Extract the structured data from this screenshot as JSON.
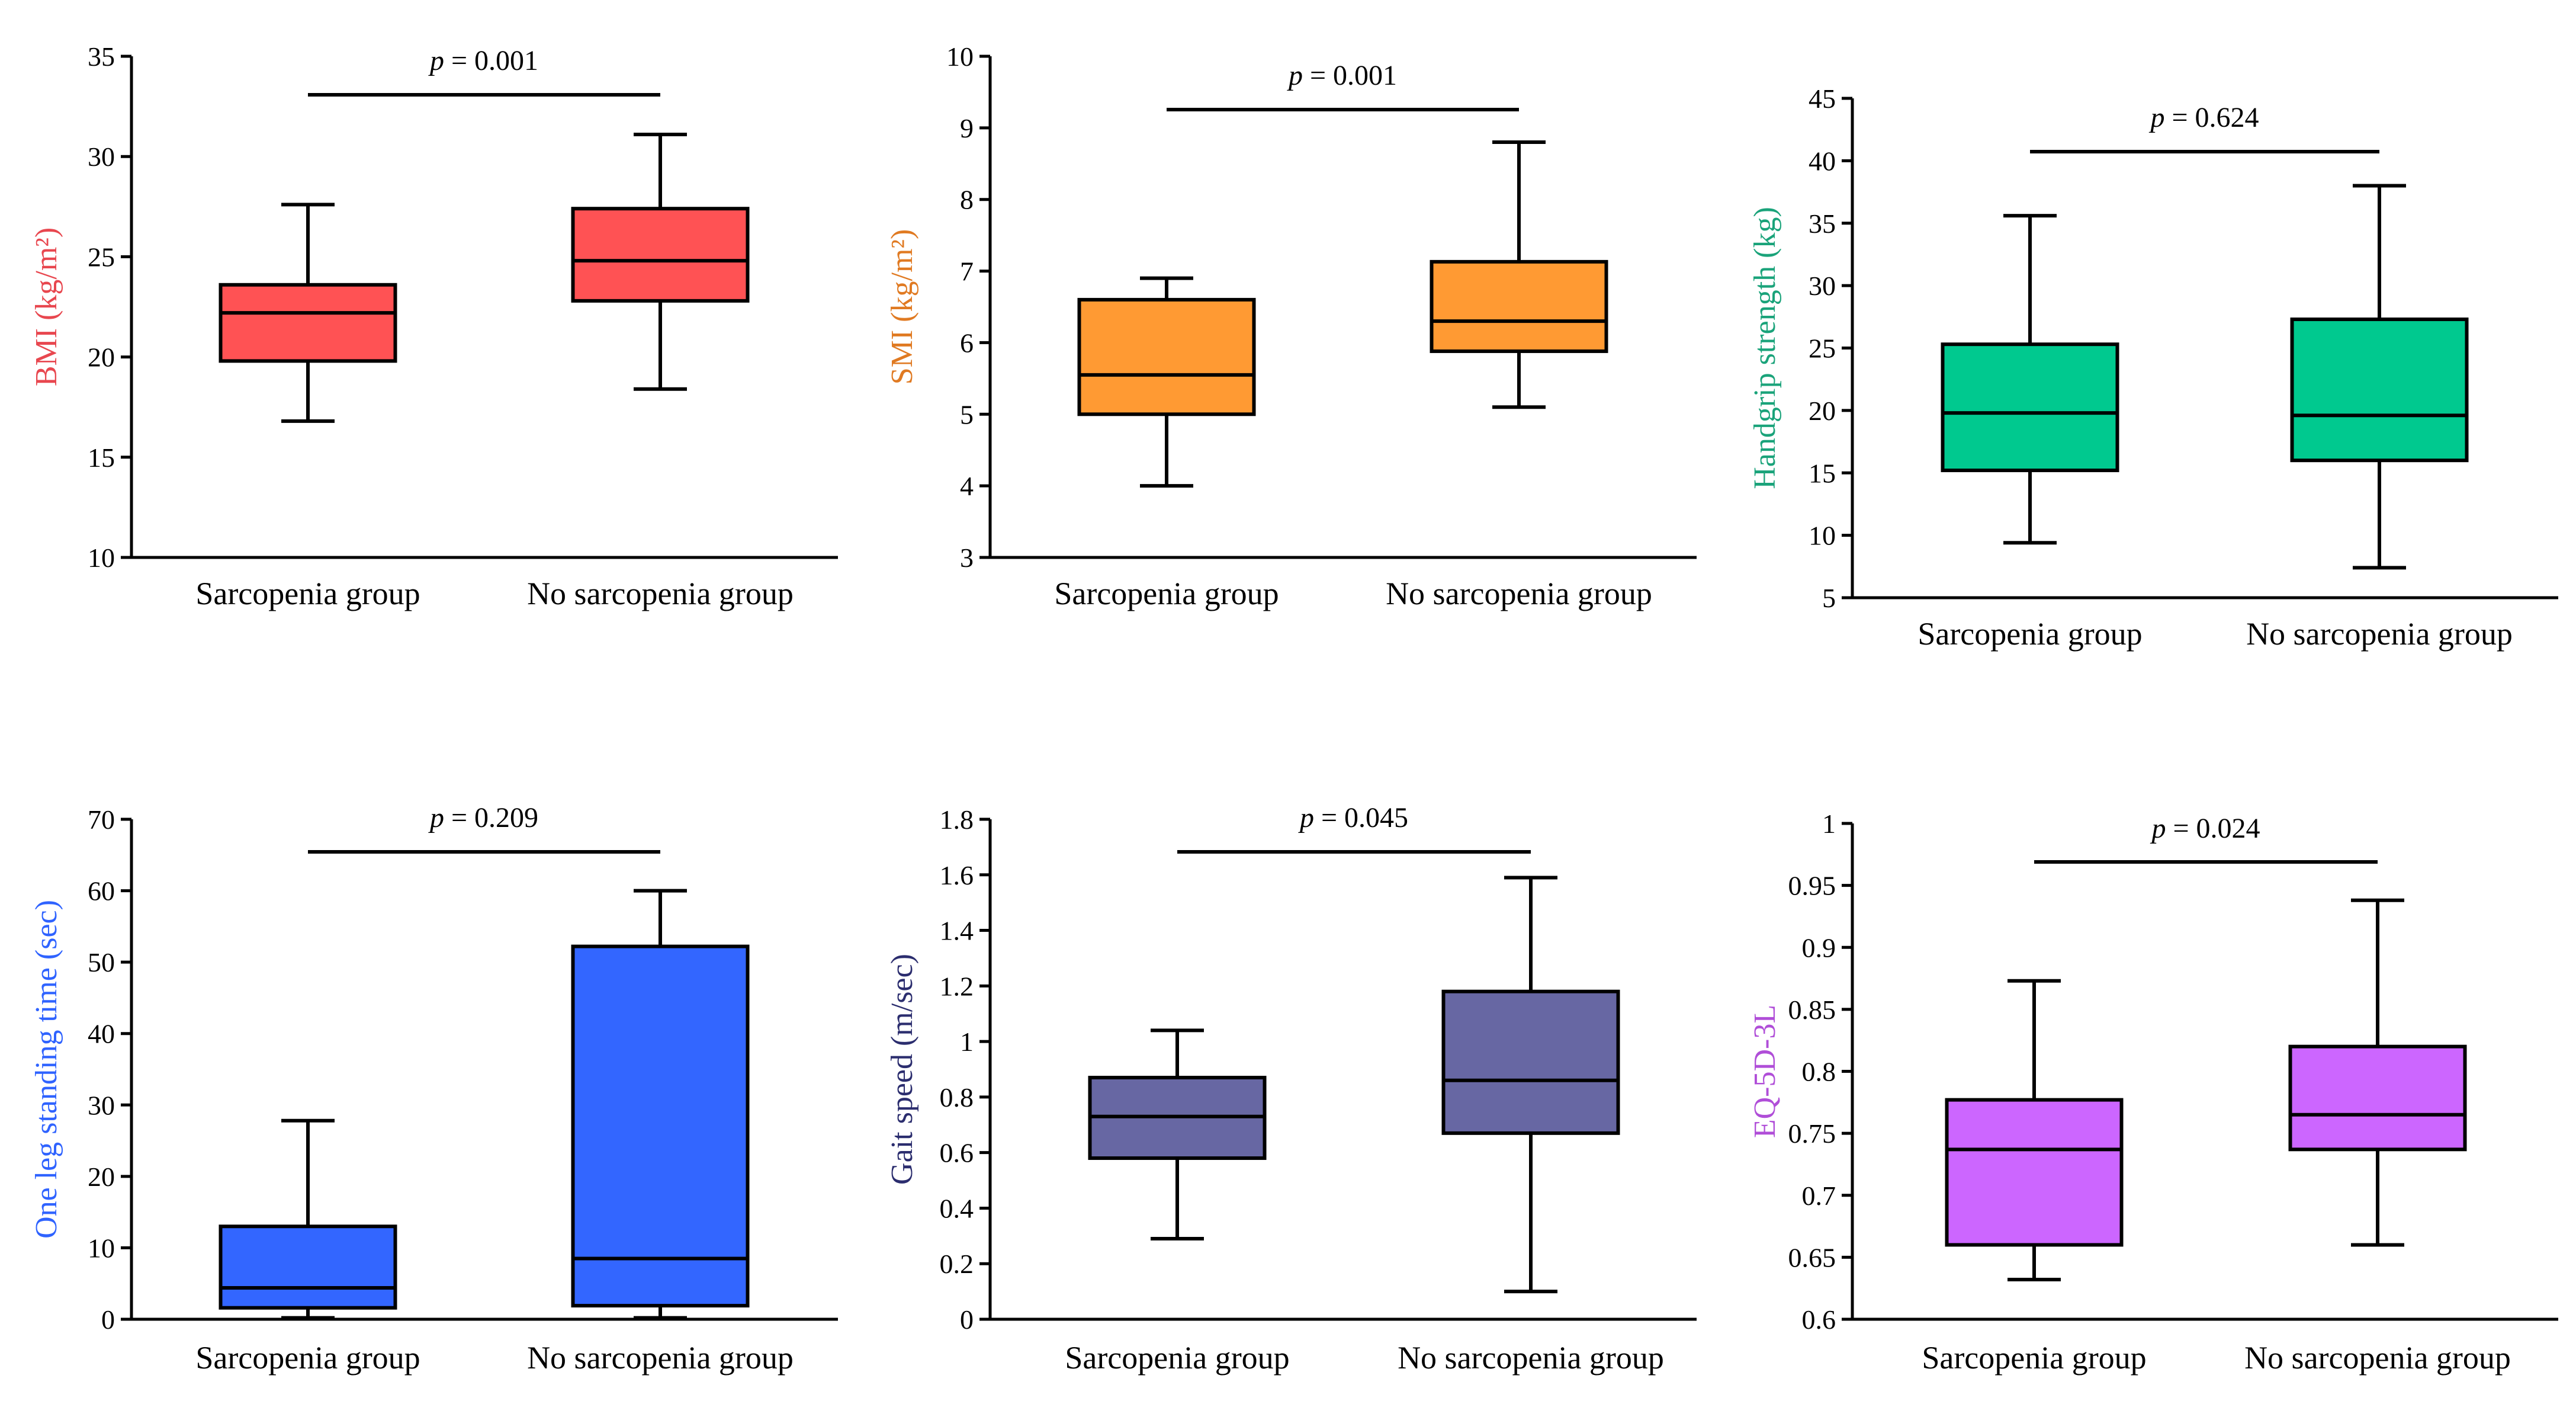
{
  "chart_data": [
    {
      "type": "box",
      "ylabel": "BMI (kg/m²)",
      "ylabel_color": "#e8474f",
      "box_color": "#ff5254",
      "ylim": [
        10,
        35
      ],
      "yticks": [
        "10",
        "15",
        "20",
        "25",
        "30",
        "35"
      ],
      "categories": [
        "Sarcopenia group",
        "No sarcopenia group"
      ],
      "boxes": [
        {
          "min": 16.8,
          "q1": 19.8,
          "median": 22.2,
          "q3": 23.6,
          "max": 27.6
        },
        {
          "min": 18.4,
          "q1": 22.8,
          "median": 24.8,
          "q3": 27.4,
          "max": 31.1
        }
      ],
      "p_label": "p",
      "p_value": " = 0.001"
    },
    {
      "type": "box",
      "ylabel": "SMI (kg/m²)",
      "ylabel_color": "#e07a22",
      "box_color": "#ff9a33",
      "ylim": [
        3,
        10
      ],
      "yticks": [
        "3",
        "4",
        "5",
        "6",
        "7",
        "8",
        "9",
        "10"
      ],
      "categories": [
        "Sarcopenia group",
        "No sarcopenia group"
      ],
      "boxes": [
        {
          "min": 4.0,
          "q1": 5.0,
          "median": 5.55,
          "q3": 6.6,
          "max": 6.9
        },
        {
          "min": 5.1,
          "q1": 5.88,
          "median": 6.3,
          "q3": 7.13,
          "max": 8.8
        }
      ],
      "p_label": "p",
      "p_value": " = 0.001"
    },
    {
      "type": "box",
      "ylabel": "Handgrip strength (kg)",
      "ylabel_color": "#1aa37a",
      "box_color": "#00c98f",
      "ylim": [
        5,
        45
      ],
      "yticks": [
        "5",
        "10",
        "15",
        "20",
        "25",
        "30",
        "35",
        "40",
        "45"
      ],
      "categories": [
        "Sarcopenia group",
        "No sarcopenia group"
      ],
      "boxes": [
        {
          "min": 9.4,
          "q1": 15.2,
          "median": 19.8,
          "q3": 25.3,
          "max": 35.6
        },
        {
          "min": 7.4,
          "q1": 16.0,
          "median": 19.6,
          "q3": 27.3,
          "max": 38.0
        }
      ],
      "p_label": "p",
      "p_value": " = 0.624"
    },
    {
      "type": "box",
      "ylabel": "One leg standing time (sec)",
      "ylabel_color": "#2f63ff",
      "box_color": "#3366ff",
      "ylim": [
        0,
        70
      ],
      "yticks": [
        "0",
        "10",
        "20",
        "30",
        "40",
        "50",
        "60",
        "70"
      ],
      "categories": [
        "Sarcopenia group",
        "No sarcopenia group"
      ],
      "boxes": [
        {
          "min": 0.2,
          "q1": 1.6,
          "median": 4.4,
          "q3": 13.0,
          "max": 27.8
        },
        {
          "min": 0.2,
          "q1": 1.9,
          "median": 8.5,
          "q3": 52.2,
          "max": 60.0
        }
      ],
      "p_label": "p",
      "p_value": " = 0.209"
    },
    {
      "type": "box",
      "ylabel": "Gait speed (m/sec)",
      "ylabel_color": "#2b2d6e",
      "box_color": "#6767a3",
      "ylim": [
        0,
        1.8
      ],
      "yticks": [
        "0",
        "0.2",
        "0.4",
        "0.6",
        "0.8",
        "1",
        "1.2",
        "1.4",
        "1.6",
        "1.8"
      ],
      "categories": [
        "Sarcopenia group",
        "No sarcopenia group"
      ],
      "boxes": [
        {
          "min": 0.29,
          "q1": 0.58,
          "median": 0.73,
          "q3": 0.87,
          "max": 1.04
        },
        {
          "min": 0.1,
          "q1": 0.67,
          "median": 0.86,
          "q3": 1.18,
          "max": 1.59
        }
      ],
      "p_label": "p",
      "p_value": " = 0.045"
    },
    {
      "type": "box",
      "ylabel": "EQ-5D-3L",
      "ylabel_color": "#b04ed8",
      "box_color": "#cc66ff",
      "ylim": [
        0.6,
        1.0
      ],
      "yticks": [
        "0.6",
        "0.65",
        "0.7",
        "0.75",
        "0.8",
        "0.85",
        "0.9",
        "0.95",
        "1"
      ],
      "categories": [
        "Sarcopenia group",
        "No sarcopenia group"
      ],
      "boxes": [
        {
          "min": 0.632,
          "q1": 0.66,
          "median": 0.737,
          "q3": 0.777,
          "max": 0.873
        },
        {
          "min": 0.66,
          "q1": 0.737,
          "median": 0.765,
          "q3": 0.82,
          "max": 0.938
        }
      ],
      "p_label": "p",
      "p_value": " = 0.024"
    }
  ]
}
